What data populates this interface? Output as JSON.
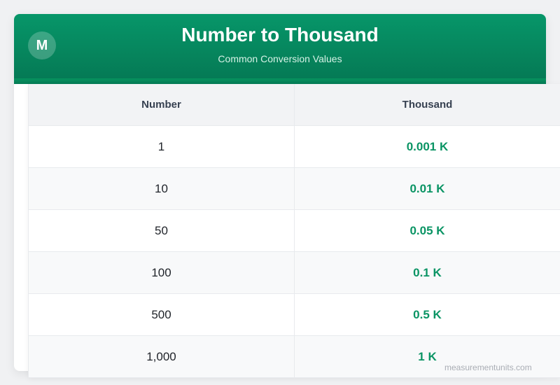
{
  "header": {
    "logo_letter": "M",
    "title": "Number to Thousand",
    "subtitle": "Common Conversion Values"
  },
  "table": {
    "columns": [
      "Number",
      "Thousand"
    ],
    "rows": [
      {
        "number": "1",
        "thousand": "0.001 K"
      },
      {
        "number": "10",
        "thousand": "0.01 K"
      },
      {
        "number": "50",
        "thousand": "0.05 K"
      },
      {
        "number": "100",
        "thousand": "0.1 K"
      },
      {
        "number": "500",
        "thousand": "0.5 K"
      },
      {
        "number": "1,000",
        "thousand": "1 K"
      }
    ]
  },
  "footer": {
    "watermark": "measurementunits.com"
  },
  "colors": {
    "header_green": "#079669",
    "value_green": "#0a9464",
    "header_row_bg": "#f2f3f5",
    "alt_row_bg": "#f8f9fa"
  }
}
